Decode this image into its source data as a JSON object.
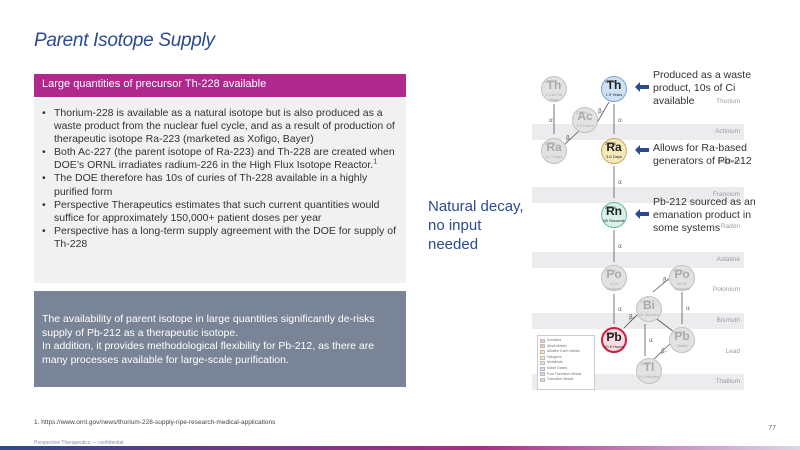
{
  "page": {
    "title": "Parent Isotope Supply",
    "page_number": "77",
    "footnote": "1. https://www.ornl.gov/news/thorium-228-supply-ripe-research-medical-applications"
  },
  "left": {
    "header": "Large quantities of precursor Th-228 available",
    "bullets": [
      "Thorium-228 is available as a natural isotope but is also produced as a waste product from the nuclear fuel cycle, and as a result of production of therapeutic isotope Ra-223 (marketed as Xofigo, Bayer)",
      "Both Ac-227 (the parent isotope of Ra-223) and Th-228 are created when DOE’s ORNL irradiates radium-226 in the High Flux Isotope Reactor.",
      "The DOE therefore has 10s of curies of Th-228 available in a highly purified form",
      "Perspective Therapeutics estimates that such current quantities would suffice for approximately 150,000+ patient doses per year",
      "Perspective has a long-term supply agreement with the DOE for supply of Th-228"
    ],
    "bullet2_sup": "1",
    "summary_line1": "The availability of parent isotope in large quantities significantly de-risks supply of Pb-212 as a therapeutic isotope.",
    "summary_line2": "In addition, it provides methodological flexibility for Pb-212, as there are many processes available for large-scale purification."
  },
  "middle": {
    "line1": "Natural decay,",
    "line2": "no input",
    "line3": "needed"
  },
  "chart": {
    "bands": [
      "Thorium",
      "Actinium",
      "Radium",
      "Francium",
      "Radon",
      "Astatine",
      "Polonium",
      "Bismuth",
      "Lead",
      "Thallium"
    ],
    "nodes": {
      "th232": {
        "sym": "Th",
        "num": "232 90",
        "hl": "1.41e+10 Years"
      },
      "ac228": {
        "sym": "Ac",
        "num": "228 89",
        "hl": "6.1 Hours"
      },
      "ra228": {
        "sym": "Ra",
        "num": "228 88",
        "hl": "5.7 Years"
      },
      "th228": {
        "sym": "Th",
        "num": "228 90",
        "hl": "1.9 Years"
      },
      "ra224": {
        "sym": "Ra",
        "num": "224 88",
        "hl": "3.6 Days"
      },
      "rn220": {
        "sym": "Rn",
        "num": "220 86",
        "hl": "55 Seconds"
      },
      "po216": {
        "sym": "Po",
        "num": "216 84",
        "hl": "0.14 Seconds"
      },
      "po212": {
        "sym": "Po",
        "num": "212 84",
        "hl": "3e-07 Seconds"
      },
      "bi212": {
        "sym": "Bi",
        "num": "212 83",
        "hl": "61 Minutes"
      },
      "pb212": {
        "sym": "Pb",
        "num": "212 82",
        "hl": "10.6 Hours"
      },
      "pb208": {
        "sym": "Pb",
        "num": "208 82",
        "hl": "Stable"
      },
      "tl208": {
        "sym": "Tl",
        "num": "208 81",
        "hl": "3.1 Minutes"
      }
    },
    "alpha": "α",
    "beta": "β-",
    "legend": [
      "Actinides",
      "Alkali Metals",
      "Alkaline Earth Metals",
      "Halogens",
      "Metalloids",
      "Noble Gases",
      "Post Transition Metals",
      "Transition Metals"
    ],
    "legend_colors": [
      "#f4c4d4",
      "#f7c9a8",
      "#fde6a8",
      "#fbf4a8",
      "#d8ecc8",
      "#c8e4f4",
      "#d8d8e8",
      "#f4d4c4"
    ]
  },
  "callouts": {
    "th": "Produced as a waste product, 10s of Ci available",
    "ra": "Allows for Ra-based generators of Pb-212",
    "rn": "Pb-212 sourced as an emanation product in some systems"
  },
  "footer": {
    "text": "Perspective Therapeutics — confidential"
  }
}
